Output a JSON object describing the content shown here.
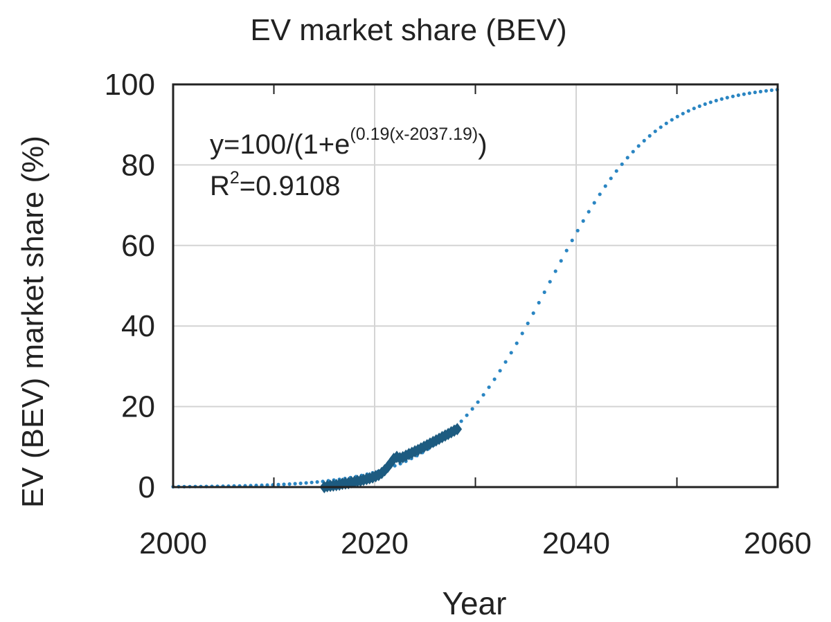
{
  "chart_data": {
    "type": "scatter",
    "title": "EV market share (BEV)",
    "xlabel": "Year",
    "ylabel": "EV (BEV) market share (%)",
    "xlim": [
      2000,
      2060
    ],
    "ylim": [
      0,
      100
    ],
    "x_ticks": [
      2000,
      2020,
      2040,
      2060
    ],
    "x_minor_ticks": [
      2010,
      2030,
      2050
    ],
    "y_ticks": [
      0,
      20,
      40,
      60,
      80,
      100
    ],
    "grid": true,
    "annotation": {
      "equation_prefix": "y=100/(1+e",
      "equation_exponent": "(0.19(x-2037.19)",
      "equation_suffix": ")",
      "r2_base": "R",
      "r2_exponent": "2",
      "r2_value": "=0.9108"
    },
    "colors": {
      "observed": "#1d5b80",
      "fit": "#2a85c2",
      "grid": "#d4d4d4",
      "axis": "#222222"
    },
    "series": [
      {
        "kind": "observed",
        "marker": "diamond",
        "points": [
          [
            2015.0,
            0.0
          ],
          [
            2015.3,
            0.2
          ],
          [
            2015.6,
            0.3
          ],
          [
            2015.9,
            0.4
          ],
          [
            2016.2,
            0.5
          ],
          [
            2016.5,
            0.6
          ],
          [
            2016.8,
            0.8
          ],
          [
            2017.1,
            0.9
          ],
          [
            2017.4,
            1.0
          ],
          [
            2017.7,
            1.2
          ],
          [
            2018.0,
            1.3
          ],
          [
            2018.3,
            1.5
          ],
          [
            2018.6,
            1.6
          ],
          [
            2018.9,
            1.8
          ],
          [
            2019.2,
            2.0
          ],
          [
            2019.5,
            2.2
          ],
          [
            2019.8,
            2.4
          ],
          [
            2020.1,
            2.7
          ],
          [
            2020.4,
            3.0
          ],
          [
            2020.7,
            3.5
          ],
          [
            2021.0,
            4.2
          ],
          [
            2021.3,
            5.0
          ],
          [
            2021.6,
            6.0
          ],
          [
            2021.9,
            7.0
          ],
          [
            2022.2,
            7.5
          ],
          [
            2022.5,
            7.2
          ],
          [
            2022.8,
            7.4
          ],
          [
            2023.1,
            7.8
          ],
          [
            2023.4,
            8.2
          ],
          [
            2023.7,
            8.5
          ],
          [
            2024.0,
            8.9
          ],
          [
            2024.3,
            9.2
          ],
          [
            2024.6,
            9.6
          ],
          [
            2024.9,
            10.0
          ],
          [
            2025.2,
            10.4
          ],
          [
            2025.5,
            10.8
          ],
          [
            2025.8,
            11.2
          ],
          [
            2026.1,
            11.6
          ],
          [
            2026.4,
            12.0
          ],
          [
            2026.7,
            12.4
          ],
          [
            2027.0,
            12.8
          ],
          [
            2027.3,
            13.2
          ],
          [
            2027.6,
            13.6
          ],
          [
            2027.9,
            14.0
          ],
          [
            2028.2,
            14.4
          ]
        ]
      },
      {
        "kind": "fit",
        "marker": "dot",
        "equation": {
          "k": 0.19,
          "x0": 2037.19,
          "max": 100
        },
        "x_start": 2000,
        "x_end": 2060,
        "x_step": 0.55
      }
    ]
  }
}
